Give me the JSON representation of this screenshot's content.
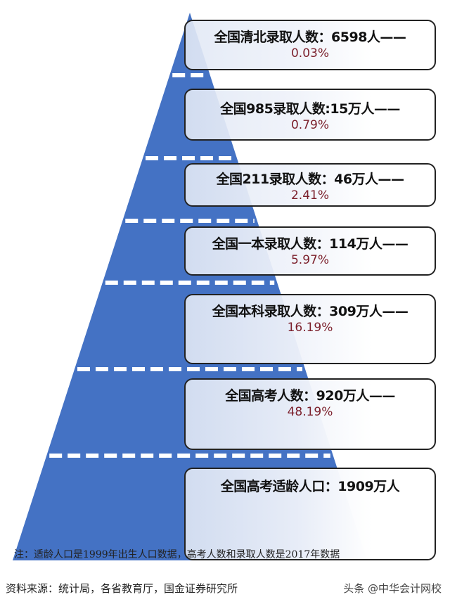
{
  "colors": {
    "pyramid": "#4472c4",
    "percent": "#7b1f2b",
    "dash": "#ffffff"
  },
  "levels": [
    {
      "label": "全国清北录取人数：6598人——",
      "percent": "0.03%"
    },
    {
      "label": "全国985录取人数:15万人——",
      "percent": "0.79%"
    },
    {
      "label": "全国211录取人数：46万人——",
      "percent": "2.41%"
    },
    {
      "label": "全国一本录取人数：114万人——",
      "percent": "5.97%"
    },
    {
      "label": "全国本科录取人数：309万人——",
      "percent": "16.19%"
    },
    {
      "label": "全国高考人数：920万人——",
      "percent": "48.19%"
    },
    {
      "label": "全国高考适龄人口：1909万人",
      "percent": ""
    }
  ],
  "note": "注：适龄人口是1999年出生人口数据，高考人数和录取人数是2017年数据",
  "source": "资料来源：统计局，各省教育厅，国金证券研究所",
  "watermark": "头条 @中华会计网校"
}
